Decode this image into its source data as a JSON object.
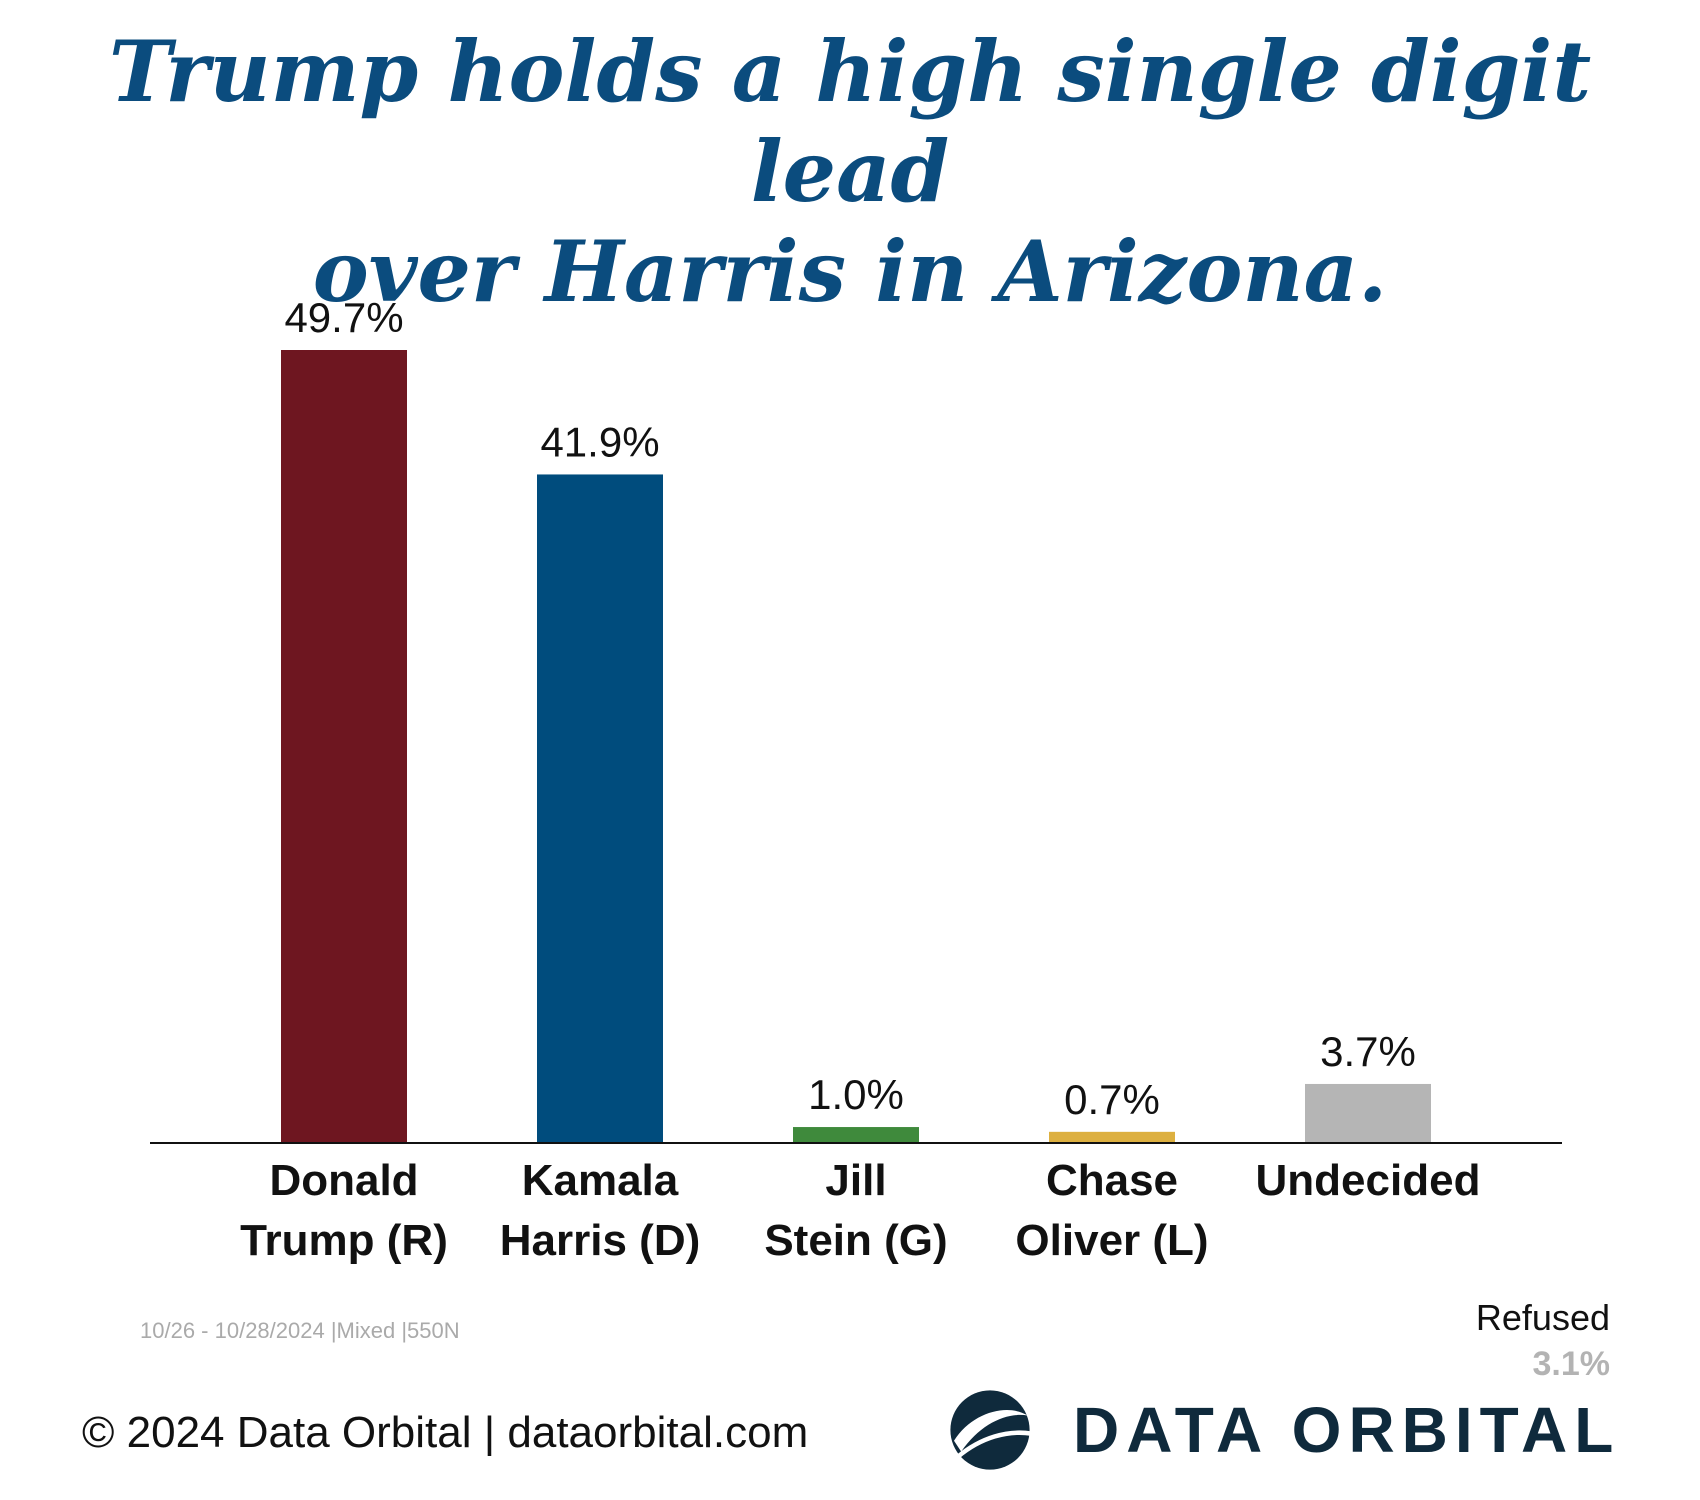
{
  "title": {
    "line1": "Trump holds a high single digit lead",
    "line2": "over Harris in Arizona."
  },
  "chart_data": {
    "type": "bar",
    "categories": [
      [
        "Donald",
        "Trump (R)"
      ],
      [
        "Kamala",
        "Harris (D)"
      ],
      [
        "Jill",
        "Stein (G)"
      ],
      [
        "Chase",
        "Oliver (L)"
      ],
      [
        "Undecided"
      ]
    ],
    "values": [
      49.7,
      41.9,
      1.0,
      0.7,
      3.7
    ],
    "value_labels": [
      "49.7%",
      "41.9%",
      "1.0%",
      "0.7%",
      "3.7%"
    ],
    "colors": [
      "#6e1620",
      "#004c7d",
      "#3f8a3c",
      "#ddb040",
      "#b5b5b5"
    ],
    "unit": "%",
    "ylim": [
      0,
      52
    ],
    "grid": false,
    "legend": "none"
  },
  "meta": "10/26 - 10/28/2024 |Mixed |550N",
  "refused": {
    "label": "Refused",
    "value": "3.1%"
  },
  "footer": "© 2024 Data Orbital | dataorbital.com",
  "logo": {
    "text": "DATA ORBITAL",
    "icon": "orbit-globe-icon"
  }
}
